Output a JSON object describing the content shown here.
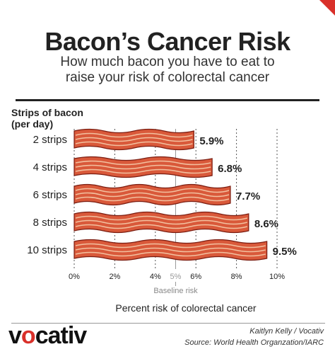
{
  "header": {
    "title": "Bacon’s Cancer Risk",
    "subtitle_line1": "How much bacon you have to eat to",
    "subtitle_line2": "raise your risk of colorectal cancer"
  },
  "colors": {
    "accent": "#d9302a",
    "bacon_fill": "#d9593a",
    "bacon_stripe": "#f2c09f",
    "bacon_outline": "#7a1c10"
  },
  "chart_data": {
    "type": "bar",
    "ylabel_line1": "Strips of bacon",
    "ylabel_line2": "(per day)",
    "categories": [
      "2 strips",
      "4 strips",
      "6 strips",
      "8 strips",
      "10 strips"
    ],
    "values": [
      5.9,
      6.8,
      7.7,
      8.6,
      9.5
    ],
    "value_labels": [
      "5.9%",
      "6.8%",
      "7.7%",
      "8.6%",
      "9.5%"
    ],
    "xlim": [
      0,
      10
    ],
    "xticks": [
      0,
      2,
      4,
      6,
      8,
      10
    ],
    "xtick_labels": [
      "0%",
      "2%",
      "4%",
      "6%",
      "8%",
      "10%"
    ],
    "xlabel": "Percent risk of colorectal cancer",
    "baseline": {
      "value": 5,
      "tick_label": "5%",
      "label": "Baseline risk"
    },
    "grid": true
  },
  "footer": {
    "logo_pre": "v",
    "logo_o": "o",
    "logo_post": "cativ",
    "credit": "Kaitlyn Kelly  / Vocativ",
    "source": "Source: World Health Organzation/IARC"
  }
}
